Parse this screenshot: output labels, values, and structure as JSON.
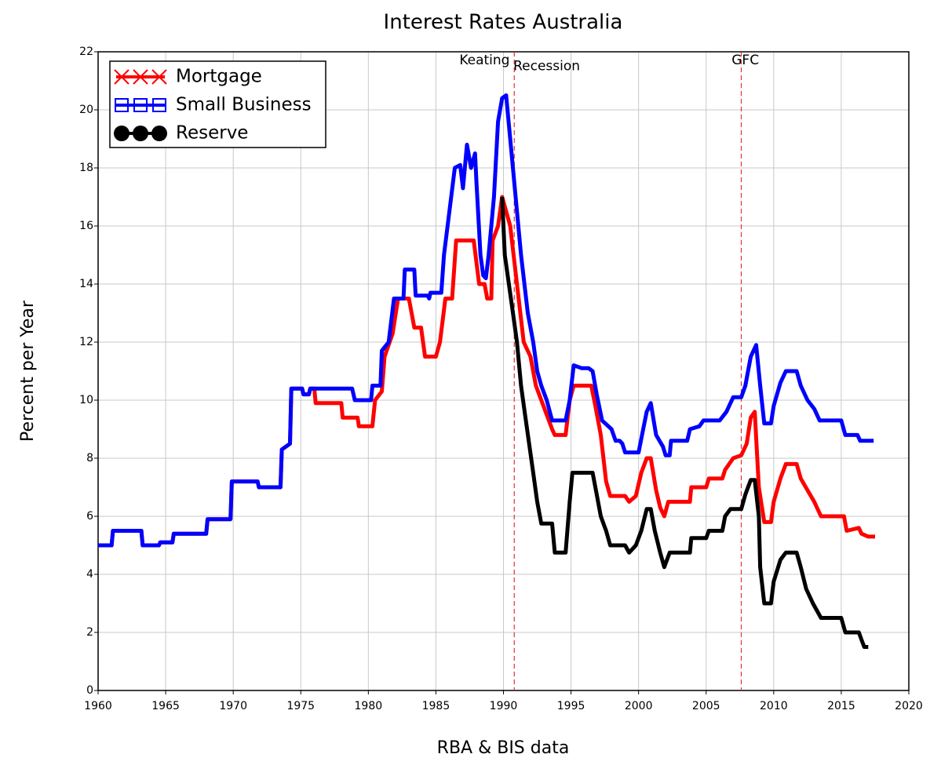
{
  "chart_data": {
    "type": "line",
    "title": "Interest Rates Australia",
    "xlabel": "RBA & BIS data",
    "ylabel": "Percent per Year",
    "xlim": [
      1960,
      2020
    ],
    "ylim": [
      0,
      22
    ],
    "xticks": [
      1960,
      1965,
      1970,
      1975,
      1980,
      1985,
      1990,
      1995,
      2000,
      2005,
      2010,
      2015,
      2020
    ],
    "yticks": [
      0,
      2,
      4,
      6,
      8,
      10,
      12,
      14,
      16,
      18,
      20,
      22
    ],
    "grid": true,
    "legend": "upper left",
    "vlines": [
      1990.8,
      2007.6
    ],
    "vline_color": "#e03030",
    "annotations": [
      {
        "text": "Keating",
        "x": 1988.6,
        "y": 21.7
      },
      {
        "text": "Recession",
        "x": 1993.2,
        "y": 21.5
      },
      {
        "text": "GFC",
        "x": 2007.9,
        "y": 21.7
      }
    ],
    "series": [
      {
        "name": "Mortgage",
        "color": "#ff0000",
        "marker": "x",
        "x": [
          1960,
          1961,
          1961.1,
          1963.2,
          1963.3,
          1964.5,
          1964.6,
          1965.5,
          1965.6,
          1968.0,
          1968.1,
          1969.8,
          1969.9,
          1971.8,
          1971.9,
          1973.5,
          1973.6,
          1974.2,
          1974.3,
          1975.1,
          1975.2,
          1975.6,
          1975.7,
          1976.0,
          1976.1,
          1978.0,
          1978.1,
          1979.2,
          1979.3,
          1980.3,
          1980.5,
          1981.0,
          1981.2,
          1981.8,
          1982.2,
          1983.0,
          1983.4,
          1983.9,
          1984.2,
          1985.0,
          1985.3,
          1985.7,
          1986.2,
          1986.5,
          1987.8,
          1988.2,
          1988.6,
          1988.8,
          1989.1,
          1989.2,
          1989.6,
          1989.9,
          1990.5,
          1991.0,
          1991.5,
          1992.0,
          1992.4,
          1992.8,
          1993.6,
          1993.8,
          1994.6,
          1994.9,
          1995.2,
          1996.5,
          1996.8,
          1997.2,
          1997.6,
          1997.9,
          1999.0,
          1999.3,
          1999.8,
          2000.2,
          2000.6,
          2000.9,
          2001.3,
          2001.6,
          2001.9,
          2002.2,
          2003.8,
          2003.9,
          2005.0,
          2005.2,
          2006.2,
          2006.4,
          2007.0,
          2007.6,
          2008.0,
          2008.3,
          2008.6,
          2008.9,
          2009.3,
          2009.8,
          2010.0,
          2010.5,
          2010.9,
          2011.7,
          2012.0,
          2012.5,
          2013.0,
          2013.5,
          2015.2,
          2015.4,
          2016.3,
          2016.5,
          2017.0,
          2017.5
        ],
        "values": [
          5.0,
          5.0,
          5.5,
          5.5,
          5.0,
          5.0,
          5.1,
          5.1,
          5.4,
          5.4,
          5.9,
          5.9,
          7.2,
          7.2,
          7.0,
          7.0,
          8.3,
          8.5,
          10.4,
          10.4,
          10.2,
          10.2,
          10.4,
          10.4,
          9.9,
          9.9,
          9.4,
          9.4,
          9.1,
          9.1,
          10.0,
          10.3,
          11.5,
          12.3,
          13.5,
          13.5,
          12.5,
          12.5,
          11.5,
          11.5,
          12.0,
          13.5,
          13.5,
          15.5,
          15.5,
          14.0,
          14.0,
          13.5,
          13.5,
          15.5,
          16.0,
          17.0,
          16.0,
          14.0,
          12.0,
          11.5,
          10.5,
          10.0,
          9.0,
          8.8,
          8.8,
          10.0,
          10.5,
          10.5,
          9.8,
          8.8,
          7.2,
          6.7,
          6.7,
          6.5,
          6.7,
          7.5,
          8.0,
          8.0,
          6.9,
          6.3,
          6.0,
          6.5,
          6.5,
          7.0,
          7.0,
          7.3,
          7.3,
          7.6,
          8.0,
          8.1,
          8.5,
          9.4,
          9.6,
          7.0,
          5.8,
          5.8,
          6.5,
          7.3,
          7.8,
          7.8,
          7.3,
          6.9,
          6.5,
          6.0,
          6.0,
          5.5,
          5.6,
          5.4,
          5.3,
          5.3
        ]
      },
      {
        "name": "Small Business",
        "color": "#0000ff",
        "marker": "square",
        "x": [
          1960,
          1961,
          1961.1,
          1963.2,
          1963.3,
          1964.5,
          1964.6,
          1965.5,
          1965.6,
          1968.0,
          1968.1,
          1969.8,
          1969.9,
          1971.8,
          1971.9,
          1973.5,
          1973.6,
          1974.2,
          1974.3,
          1975.1,
          1975.2,
          1975.6,
          1975.7,
          1978.8,
          1979.0,
          1980.2,
          1980.3,
          1980.9,
          1981.0,
          1981.5,
          1981.9,
          1982.6,
          1982.7,
          1983.4,
          1983.5,
          1984.4,
          1984.5,
          1984.6,
          1985.4,
          1985.6,
          1986.0,
          1986.4,
          1986.8,
          1987.0,
          1987.3,
          1987.6,
          1987.9,
          1988.0,
          1988.3,
          1988.5,
          1988.7,
          1988.9,
          1989.3,
          1989.6,
          1989.9,
          1990.2,
          1990.5,
          1990.9,
          1991.3,
          1991.8,
          1992.2,
          1992.5,
          1992.8,
          1993.2,
          1993.6,
          1994.6,
          1994.9,
          1995.2,
          1995.8,
          1996.3,
          1996.6,
          1996.9,
          1997.3,
          1998.0,
          1998.3,
          1998.6,
          1998.8,
          1999.0,
          2000.0,
          2000.3,
          2000.6,
          2000.9,
          2001.3,
          2001.8,
          2002.0,
          2002.3,
          2002.4,
          2003.6,
          2003.8,
          2004.5,
          2004.8,
          2006.0,
          2006.5,
          2007.0,
          2007.6,
          2007.9,
          2008.3,
          2008.7,
          2009.0,
          2009.3,
          2009.8,
          2010.0,
          2010.5,
          2010.9,
          2011.7,
          2012.0,
          2012.5,
          2013.0,
          2013.4,
          2015.0,
          2015.3,
          2016.2,
          2016.4,
          2017.4
        ],
        "values": [
          5.0,
          5.0,
          5.5,
          5.5,
          5.0,
          5.0,
          5.1,
          5.1,
          5.4,
          5.4,
          5.9,
          5.9,
          7.2,
          7.2,
          7.0,
          7.0,
          8.3,
          8.5,
          10.4,
          10.4,
          10.2,
          10.2,
          10.4,
          10.4,
          10.0,
          10.0,
          10.5,
          10.5,
          11.7,
          12.0,
          13.5,
          13.5,
          14.5,
          14.5,
          13.6,
          13.6,
          13.5,
          13.7,
          13.7,
          15.0,
          16.5,
          18.0,
          18.1,
          17.3,
          18.8,
          18.0,
          18.5,
          17.5,
          15.0,
          14.3,
          14.2,
          15.0,
          17.0,
          19.6,
          20.4,
          20.5,
          19.0,
          17.0,
          15.0,
          13.0,
          12.0,
          11.0,
          10.5,
          10.0,
          9.3,
          9.3,
          10.0,
          11.2,
          11.1,
          11.1,
          11.0,
          10.2,
          9.3,
          9.0,
          8.6,
          8.6,
          8.5,
          8.2,
          8.2,
          8.9,
          9.6,
          9.9,
          8.8,
          8.4,
          8.1,
          8.1,
          8.6,
          8.6,
          9.0,
          9.1,
          9.3,
          9.3,
          9.6,
          10.1,
          10.1,
          10.5,
          11.5,
          11.9,
          10.5,
          9.2,
          9.2,
          9.8,
          10.6,
          11.0,
          11.0,
          10.5,
          10.0,
          9.7,
          9.3,
          9.3,
          8.8,
          8.8,
          8.6,
          8.6
        ]
      },
      {
        "name": "Reserve",
        "color": "#000000",
        "marker": "circle",
        "x": [
          1989.9,
          1990.1,
          1990.4,
          1990.7,
          1991.0,
          1991.3,
          1991.6,
          1991.9,
          1992.2,
          1992.5,
          1992.8,
          1993.6,
          1993.8,
          1994.6,
          1994.9,
          1995.1,
          1996.6,
          1996.8,
          1997.2,
          1997.6,
          1997.9,
          1999.0,
          1999.3,
          1999.8,
          2000.2,
          2000.6,
          2000.9,
          2001.2,
          2001.6,
          2001.9,
          2002.3,
          2003.8,
          2003.9,
          2005.0,
          2005.2,
          2006.2,
          2006.4,
          2006.8,
          2007.6,
          2007.9,
          2008.3,
          2008.6,
          2008.9,
          2009.0,
          2009.3,
          2009.8,
          2010.0,
          2010.5,
          2010.9,
          2011.7,
          2012.0,
          2012.4,
          2012.9,
          2013.5,
          2015.0,
          2015.3,
          2016.3,
          2016.5,
          2016.7,
          2017.0
        ],
        "values": [
          17.0,
          15.0,
          14.0,
          13.0,
          12.0,
          10.5,
          9.5,
          8.5,
          7.5,
          6.5,
          5.75,
          5.75,
          4.75,
          4.75,
          6.5,
          7.5,
          7.5,
          7.0,
          6.0,
          5.5,
          5.0,
          5.0,
          4.75,
          5.0,
          5.5,
          6.25,
          6.25,
          5.5,
          4.75,
          4.25,
          4.75,
          4.75,
          5.25,
          5.25,
          5.5,
          5.5,
          6.0,
          6.25,
          6.25,
          6.75,
          7.25,
          7.25,
          6.0,
          4.25,
          3.0,
          3.0,
          3.75,
          4.5,
          4.75,
          4.75,
          4.25,
          3.5,
          3.0,
          2.5,
          2.5,
          2.0,
          2.0,
          1.75,
          1.5,
          1.5
        ]
      }
    ]
  }
}
